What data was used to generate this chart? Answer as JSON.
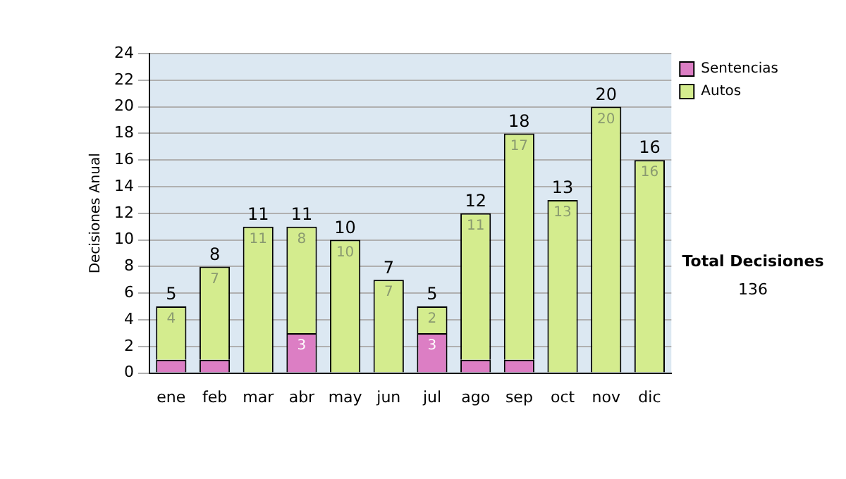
{
  "chart_data": {
    "type": "bar",
    "stacked": true,
    "ylabel": "Decisiones Anual",
    "categories": [
      "ene",
      "feb",
      "mar",
      "abr",
      "may",
      "jun",
      "jul",
      "ago",
      "sep",
      "oct",
      "nov",
      "dic"
    ],
    "series": [
      {
        "name": "Sentencias",
        "color": "#dc7ec4",
        "values": [
          1,
          1,
          0,
          3,
          0,
          0,
          3,
          1,
          1,
          0,
          0,
          0
        ],
        "value_labels": [
          null,
          null,
          null,
          "3",
          null,
          null,
          "3",
          null,
          null,
          null,
          null,
          null
        ]
      },
      {
        "name": "Autos",
        "color": "#d4ec8e",
        "values": [
          4,
          7,
          11,
          8,
          10,
          7,
          2,
          11,
          17,
          13,
          20,
          16
        ],
        "value_labels": [
          "4",
          "7",
          "11",
          "8",
          "10",
          "7",
          "2",
          "11",
          "17",
          "13",
          "20",
          "16"
        ]
      }
    ],
    "totals": [
      "5",
      "8",
      "11",
      "11",
      "10",
      "7",
      "5",
      "12",
      "18",
      "13",
      "20",
      "16"
    ],
    "ylim": [
      0,
      24
    ],
    "yticks": [
      0,
      2,
      4,
      6,
      8,
      10,
      12,
      14,
      16,
      18,
      20,
      22,
      24
    ],
    "grid": "y",
    "legend": "right",
    "annotations": [
      "Total Decisiones",
      "136"
    ]
  }
}
